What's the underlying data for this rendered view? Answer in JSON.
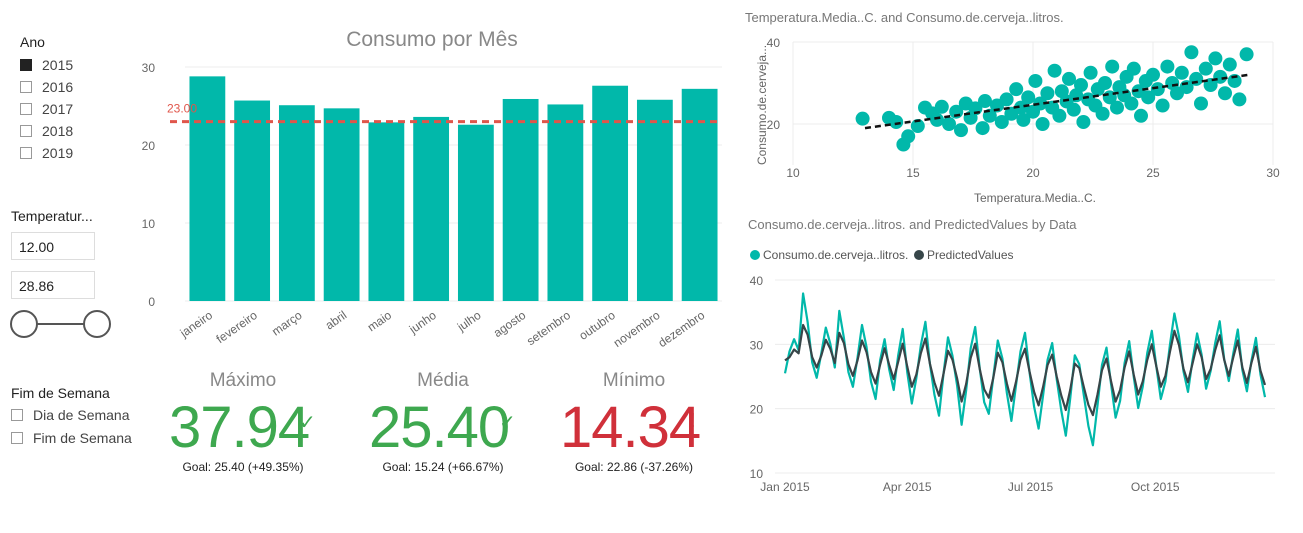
{
  "year_slicer": {
    "title": "Ano",
    "items": [
      {
        "label": "2015",
        "checked": true
      },
      {
        "label": "2016",
        "checked": false
      },
      {
        "label": "2017",
        "checked": false
      },
      {
        "label": "2018",
        "checked": false
      },
      {
        "label": "2019",
        "checked": false
      }
    ]
  },
  "temp_slicer": {
    "title": "Temperatur...",
    "min_value": "12.00",
    "max_value": "28.86"
  },
  "weekend_slicer": {
    "title": "Fim de Semana",
    "items": [
      {
        "label": "Dia de Semana",
        "checked": false
      },
      {
        "label": "Fim de Semana",
        "checked": false
      }
    ]
  },
  "kpis": [
    {
      "title": "Máximo",
      "value": "37.94",
      "indicator": "✓",
      "goal": "Goal: 25.40 (+49.35%)",
      "color": "#3ea84f"
    },
    {
      "title": "Média",
      "value": "25.40",
      "indicator": "✓",
      "goal": "Goal: 15.24 (+66.67%)",
      "color": "#3ea84f"
    },
    {
      "title": "Mínimo",
      "value": "14.34",
      "indicator": "!",
      "goal": "Goal: 22.86 (-37.26%)",
      "color": "#d0303a"
    }
  ],
  "colors": {
    "teal": "#01b8aa",
    "dark": "#374649",
    "ref_line": "#e0564b",
    "grid": "#ececec"
  },
  "chart_data": [
    {
      "type": "bar",
      "title": "Consumo por Mês",
      "categories": [
        "janeiro",
        "fevereiro",
        "março",
        "abril",
        "maio",
        "junho",
        "julho",
        "agosto",
        "setembro",
        "outubro",
        "novembro",
        "dezembro"
      ],
      "values": [
        28.8,
        25.7,
        25.1,
        24.7,
        22.9,
        23.6,
        22.6,
        25.9,
        25.2,
        27.6,
        25.8,
        27.2
      ],
      "ylim": [
        0,
        30
      ],
      "yticks": [
        "0",
        "10",
        "20",
        "30"
      ],
      "reference_line": {
        "value": 23.0,
        "label": "23.00"
      }
    },
    {
      "type": "scatter",
      "title": "Temperatura.Media..C. and Consumo.de.cerveja..litros.",
      "xlabel": "Temperatura.Media..C.",
      "ylabel": "Consumo.de.cerveja...",
      "xlim": [
        10,
        30
      ],
      "ylim": [
        10,
        40
      ],
      "xticks": [
        "10",
        "15",
        "20",
        "25",
        "30"
      ],
      "yticks": [
        "20",
        "40"
      ],
      "trendline": {
        "x": [
          13,
          29
        ],
        "y": [
          19,
          32
        ]
      },
      "points": [
        [
          12.9,
          21.3
        ],
        [
          14.0,
          21.5
        ],
        [
          14.3,
          20.5
        ],
        [
          14.6,
          15.0
        ],
        [
          14.8,
          17.0
        ],
        [
          15.2,
          19.5
        ],
        [
          15.5,
          24.0
        ],
        [
          15.8,
          22.6
        ],
        [
          16.0,
          21.0
        ],
        [
          16.2,
          24.2
        ],
        [
          16.5,
          20.0
        ],
        [
          16.8,
          23.0
        ],
        [
          17.0,
          18.5
        ],
        [
          17.2,
          25.0
        ],
        [
          17.4,
          21.5
        ],
        [
          17.6,
          23.8
        ],
        [
          17.9,
          19.0
        ],
        [
          18.0,
          25.6
        ],
        [
          18.2,
          22.0
        ],
        [
          18.5,
          24.5
        ],
        [
          18.7,
          20.5
        ],
        [
          18.9,
          26.0
        ],
        [
          19.1,
          22.5
        ],
        [
          19.3,
          28.5
        ],
        [
          19.5,
          24.0
        ],
        [
          19.6,
          21.0
        ],
        [
          19.8,
          26.5
        ],
        [
          20.0,
          23.0
        ],
        [
          20.1,
          30.5
        ],
        [
          20.3,
          25.0
        ],
        [
          20.4,
          20.0
        ],
        [
          20.6,
          27.5
        ],
        [
          20.8,
          24.0
        ],
        [
          20.9,
          33.0
        ],
        [
          21.1,
          22.0
        ],
        [
          21.2,
          28.0
        ],
        [
          21.4,
          25.5
        ],
        [
          21.5,
          31.0
        ],
        [
          21.7,
          23.5
        ],
        [
          21.8,
          27.0
        ],
        [
          22.0,
          29.5
        ],
        [
          22.1,
          20.5
        ],
        [
          22.3,
          26.0
        ],
        [
          22.4,
          32.5
        ],
        [
          22.6,
          24.5
        ],
        [
          22.7,
          28.5
        ],
        [
          22.9,
          22.5
        ],
        [
          23.0,
          30.0
        ],
        [
          23.2,
          26.5
        ],
        [
          23.3,
          34.0
        ],
        [
          23.5,
          24.0
        ],
        [
          23.6,
          29.0
        ],
        [
          23.8,
          27.0
        ],
        [
          23.9,
          31.5
        ],
        [
          24.1,
          25.0
        ],
        [
          24.2,
          33.5
        ],
        [
          24.4,
          28.0
        ],
        [
          24.5,
          22.0
        ],
        [
          24.7,
          30.5
        ],
        [
          24.8,
          26.5
        ],
        [
          25.0,
          32.0
        ],
        [
          25.2,
          28.5
        ],
        [
          25.4,
          24.5
        ],
        [
          25.6,
          34.0
        ],
        [
          25.8,
          30.0
        ],
        [
          26.0,
          27.5
        ],
        [
          26.2,
          32.5
        ],
        [
          26.4,
          29.0
        ],
        [
          26.6,
          37.5
        ],
        [
          26.8,
          31.0
        ],
        [
          27.0,
          25.0
        ],
        [
          27.2,
          33.5
        ],
        [
          27.4,
          29.5
        ],
        [
          27.6,
          36.0
        ],
        [
          27.8,
          31.5
        ],
        [
          28.0,
          27.5
        ],
        [
          28.2,
          34.5
        ],
        [
          28.4,
          30.5
        ],
        [
          28.6,
          26.0
        ],
        [
          28.9,
          37.0
        ]
      ]
    },
    {
      "type": "line",
      "title": "Consumo.de.cerveja..litros. and PredictedValues by Data",
      "ylim": [
        10,
        40
      ],
      "yticks": [
        "10",
        "20",
        "30",
        "40"
      ],
      "xticks": [
        "Jan 2015",
        "Apr 2015",
        "Jul 2015",
        "Oct 2015"
      ],
      "x_range": [
        "2015-01-01",
        "2015-12-31"
      ],
      "series": [
        {
          "name": "Consumo.de.cerveja..litros.",
          "color": "#01b8aa",
          "values": [
            25.5,
            28.9,
            30.8,
            29.1,
            37.9,
            33.5,
            27.2,
            24.8,
            28.5,
            32.6,
            30.1,
            26.4,
            35.2,
            31.0,
            25.7,
            23.4,
            27.9,
            33.0,
            29.6,
            24.2,
            21.5,
            27.5,
            30.8,
            26.1,
            22.9,
            28.3,
            32.4,
            25.6,
            20.8,
            24.7,
            29.8,
            33.5,
            27.0,
            22.2,
            18.9,
            25.4,
            31.1,
            28.2,
            23.6,
            17.5,
            22.8,
            29.4,
            32.7,
            26.3,
            21.0,
            19.2,
            24.9,
            30.6,
            27.8,
            22.4,
            18.1,
            23.5,
            28.9,
            31.8,
            25.7,
            20.3,
            16.9,
            22.1,
            27.6,
            30.2,
            24.6,
            19.8,
            15.8,
            21.7,
            28.3,
            26.9,
            22.0,
            17.3,
            14.3,
            20.5,
            26.8,
            29.5,
            23.9,
            18.6,
            21.2,
            27.1,
            30.5,
            25.0,
            20.1,
            23.4,
            28.7,
            32.1,
            26.6,
            21.5,
            24.2,
            29.9,
            34.8,
            31.2,
            25.8,
            22.6,
            27.5,
            31.7,
            28.4,
            23.1,
            25.9,
            30.2,
            33.6,
            27.7,
            24.3,
            28.6,
            32.3,
            26.0,
            22.7,
            27.4,
            31.0,
            25.3,
            21.8
          ]
        },
        {
          "name": "PredictedValues",
          "color": "#374649",
          "values": [
            27.5,
            28.0,
            29.2,
            28.6,
            33.0,
            31.5,
            28.0,
            26.4,
            28.2,
            30.7,
            29.3,
            27.1,
            31.8,
            30.2,
            26.9,
            25.1,
            27.5,
            30.6,
            28.8,
            25.7,
            23.9,
            26.8,
            29.4,
            26.8,
            24.6,
            27.3,
            30.1,
            26.5,
            23.4,
            25.3,
            28.6,
            30.9,
            27.0,
            24.1,
            22.0,
            25.4,
            29.0,
            27.6,
            24.7,
            21.1,
            23.8,
            27.9,
            30.1,
            26.2,
            23.0,
            21.7,
            24.8,
            28.7,
            27.2,
            23.9,
            21.2,
            24.1,
            27.6,
            29.3,
            25.8,
            22.6,
            20.5,
            23.4,
            26.8,
            28.4,
            25.0,
            22.1,
            19.8,
            23.0,
            27.0,
            26.3,
            23.3,
            20.6,
            19.0,
            22.2,
            26.0,
            27.8,
            24.3,
            21.1,
            22.9,
            26.4,
            28.9,
            25.3,
            22.2,
            24.2,
            27.6,
            30.0,
            26.6,
            23.4,
            25.1,
            28.8,
            32.1,
            29.9,
            26.2,
            24.1,
            27.0,
            30.0,
            28.0,
            24.6,
            26.2,
            29.1,
            31.4,
            27.6,
            25.1,
            28.0,
            30.6,
            26.4,
            24.0,
            27.1,
            29.6,
            25.9,
            23.7
          ]
        }
      ]
    }
  ]
}
